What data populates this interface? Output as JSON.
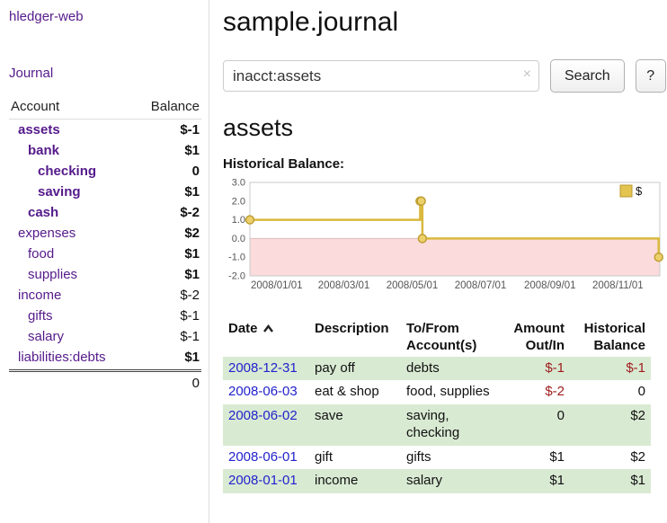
{
  "app": {
    "brand": "hledger-web"
  },
  "sidebar": {
    "nav_journal": "Journal",
    "accounts_header": {
      "account": "Account",
      "balance": "Balance"
    },
    "accounts": [
      {
        "name": "assets",
        "balance": "$-1",
        "depth": 1,
        "name_bold": true,
        "name_negative": true,
        "balance_bold": true,
        "balance_negative": true
      },
      {
        "name": "bank",
        "balance": "$1",
        "depth": 2,
        "name_bold": true,
        "name_negative": false,
        "balance_bold": true,
        "balance_negative": false
      },
      {
        "name": "checking",
        "balance": "0",
        "depth": 3,
        "name_bold": true,
        "name_negative": false,
        "balance_bold": true,
        "balance_negative": false
      },
      {
        "name": "saving",
        "balance": "$1",
        "depth": 3,
        "name_bold": true,
        "name_negative": false,
        "balance_bold": true,
        "balance_negative": false
      },
      {
        "name": "cash",
        "balance": "$-2",
        "depth": 2,
        "name_bold": true,
        "name_negative": true,
        "balance_bold": true,
        "balance_negative": true
      },
      {
        "name": "expenses",
        "balance": "$2",
        "depth": 1,
        "name_bold": false,
        "name_negative": false,
        "balance_bold": true,
        "balance_negative": false
      },
      {
        "name": "food",
        "balance": "$1",
        "depth": 2,
        "name_bold": false,
        "name_negative": false,
        "balance_bold": true,
        "balance_negative": false
      },
      {
        "name": "supplies",
        "balance": "$1",
        "depth": 2,
        "name_bold": false,
        "name_negative": false,
        "balance_bold": true,
        "balance_negative": false
      },
      {
        "name": "income",
        "balance": "$-2",
        "depth": 1,
        "name_bold": false,
        "name_negative": false,
        "balance_bold": false,
        "balance_negative": true
      },
      {
        "name": "gifts",
        "balance": "$-1",
        "depth": 2,
        "name_bold": false,
        "name_negative": false,
        "balance_bold": false,
        "balance_negative": true
      },
      {
        "name": "salary",
        "balance": "$-1",
        "depth": 2,
        "name_bold": false,
        "name_negative": false,
        "balance_bold": false,
        "balance_negative": true
      },
      {
        "name": "liabilities:debts",
        "balance": "$1",
        "depth": 1,
        "name_bold": false,
        "name_negative": false,
        "balance_bold": true,
        "balance_negative": false
      }
    ],
    "total": "0"
  },
  "header": {
    "title": "sample.journal"
  },
  "search": {
    "value": "inacct:assets",
    "clear_icon": "×",
    "button_label": "Search",
    "help_label": "?"
  },
  "main": {
    "heading": "assets",
    "chart_title": "Historical Balance:"
  },
  "chart_data": {
    "type": "line",
    "style": "step",
    "title": "Historical Balance",
    "series": [
      {
        "name": "$",
        "points": [
          [
            0,
            1
          ],
          [
            152,
            2
          ],
          [
            153,
            2
          ],
          [
            154,
            0
          ],
          [
            365,
            -1
          ]
        ],
        "point_dates": [
          "2008-01-01",
          "2008-06-01",
          "2008-06-02",
          "2008-06-03",
          "2008-12-31"
        ]
      }
    ],
    "xlim": [
      0,
      366
    ],
    "ylim": [
      -2,
      3
    ],
    "yticks": [
      "3.0",
      "2.0",
      "1.0",
      "0.0",
      "-1.0",
      "-2.0"
    ],
    "xticks": [
      {
        "x": 0,
        "label": "2008/01/01"
      },
      {
        "x": 60,
        "label": "2008/03/01"
      },
      {
        "x": 121,
        "label": "2008/05/01"
      },
      {
        "x": 182,
        "label": "2008/07/01"
      },
      {
        "x": 244,
        "label": "2008/09/01"
      },
      {
        "x": 305,
        "label": "2008/11/01"
      }
    ],
    "legend": [
      {
        "label": "$",
        "color": "#e3c44f"
      }
    ],
    "legend_position": "top-right",
    "grid": false,
    "line_color": "#d9b93e",
    "marker_fill": "#ecd06b",
    "marker_stroke": "#bf9f33",
    "negative_region_color": "#fbdbdb"
  },
  "register": {
    "columns": {
      "date": "Date",
      "description": "Description",
      "account_line1": "To/From",
      "account_line2": "Account(s)",
      "amount_line1": "Amount",
      "amount_line2": "Out/In",
      "balance_line1": "Historical",
      "balance_line2": "Balance"
    },
    "sort_icon": "caret-up",
    "rows": [
      {
        "date": "2008-12-31",
        "description": "pay off",
        "accounts": "debts",
        "amount": "$-1",
        "amount_negative": true,
        "balance": "$-1",
        "balance_negative": true,
        "shaded": true
      },
      {
        "date": "2008-06-03",
        "description": "eat & shop",
        "accounts": "food, supplies",
        "amount": "$-2",
        "amount_negative": true,
        "balance": "0",
        "balance_negative": false,
        "shaded": false
      },
      {
        "date": "2008-06-02",
        "description": "save",
        "accounts": "saving, checking",
        "amount": "0",
        "amount_negative": false,
        "balance": "$2",
        "balance_negative": false,
        "shaded": true
      },
      {
        "date": "2008-06-01",
        "description": "gift",
        "accounts": "gifts",
        "amount": "$1",
        "amount_negative": false,
        "balance": "$2",
        "balance_negative": false,
        "shaded": false
      },
      {
        "date": "2008-01-01",
        "description": "income",
        "accounts": "salary",
        "amount": "$1",
        "amount_negative": false,
        "balance": "$1",
        "balance_negative": false,
        "shaded": true
      }
    ]
  },
  "colors": {
    "link_purple": "#551A8B",
    "link_blue": "#2222cc",
    "negative_red": "#9e1b1b",
    "row_shade_green": "#d9ead3"
  }
}
